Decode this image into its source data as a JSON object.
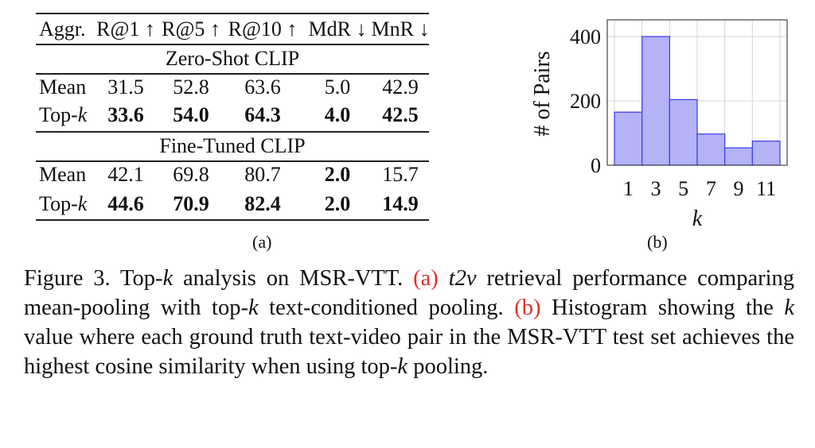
{
  "table": {
    "headers": [
      "Aggr.",
      "R@1 ↑",
      "R@5 ↑",
      "R@10 ↑",
      "MdR ↓",
      "MnR ↓"
    ],
    "groups": [
      {
        "title": "Zero-Shot CLIP",
        "rows": [
          {
            "label": "Mean",
            "label_k": "",
            "values": [
              "31.5",
              "52.8",
              "63.6",
              "5.0",
              "42.9"
            ],
            "bold": [
              false,
              false,
              false,
              false,
              false
            ]
          },
          {
            "label": "Top-",
            "label_k": "k",
            "values": [
              "33.6",
              "54.0",
              "64.3",
              "4.0",
              "42.5"
            ],
            "bold": [
              true,
              true,
              true,
              true,
              true
            ]
          }
        ]
      },
      {
        "title": "Fine-Tuned CLIP",
        "rows": [
          {
            "label": "Mean",
            "label_k": "",
            "values": [
              "42.1",
              "69.8",
              "80.7",
              "2.0",
              "15.7"
            ],
            "bold": [
              false,
              false,
              false,
              true,
              false
            ]
          },
          {
            "label": "Top-",
            "label_k": "k",
            "values": [
              "44.6",
              "70.9",
              "82.4",
              "2.0",
              "14.9"
            ],
            "bold": [
              true,
              true,
              true,
              true,
              true
            ]
          }
        ]
      }
    ],
    "sublabel": "(a)"
  },
  "chart_data": {
    "type": "bar",
    "categories": [
      "1",
      "3",
      "5",
      "7",
      "9",
      "11"
    ],
    "values": [
      165,
      400,
      204,
      97,
      54,
      75
    ],
    "xlabel": "k",
    "ylabel": "# of Pairs",
    "yticks": [
      "0",
      "200",
      "400"
    ],
    "ylim": [
      0,
      450
    ],
    "grid": true,
    "bar_color": "#b3b3f5",
    "edge_color": "#3b3bf0",
    "sublabel": "(b)"
  },
  "caption": {
    "prefix": "Figure 3.  Top-",
    "k1": "k",
    "p1": " analysis on MSR-VTT. ",
    "ref_a": "(a)",
    "t2v": "t2v",
    "p2": " retrieval performance comparing mean-pooling with top-",
    "k2": "k",
    "p3": " text-conditioned pooling. ",
    "ref_b": "(b)",
    "p4": " Histogram showing the ",
    "k3": "k",
    "p5": " value where each ground truth text-video pair in the MSR-VTT test set achieves the highest cosine similarity when using top-",
    "k4": "k",
    "p6": " pooling."
  },
  "colors": {
    "ref": "#e0302a"
  }
}
